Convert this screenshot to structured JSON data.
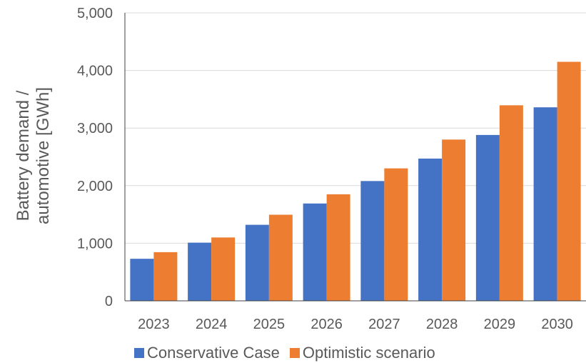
{
  "chart_data": {
    "type": "bar",
    "categories": [
      "2023",
      "2024",
      "2025",
      "2026",
      "2027",
      "2028",
      "2029",
      "2030"
    ],
    "series": [
      {
        "name": "Conservative Case",
        "color": "#4472C4",
        "values": [
          730,
          1010,
          1320,
          1690,
          2080,
          2470,
          2880,
          3360
        ]
      },
      {
        "name": "Optimistic scenario",
        "color": "#ED7D31",
        "values": [
          845,
          1100,
          1495,
          1850,
          2300,
          2800,
          3395,
          4150
        ]
      }
    ],
    "ylabel_lines": [
      "Battery demand /",
      "automotive [GWh]"
    ],
    "ylim": [
      0,
      5000
    ],
    "yticks": [
      "0",
      "1,000",
      "2,000",
      "3,000",
      "4,000",
      "5,000"
    ],
    "grid": true,
    "legend_position": "bottom"
  }
}
